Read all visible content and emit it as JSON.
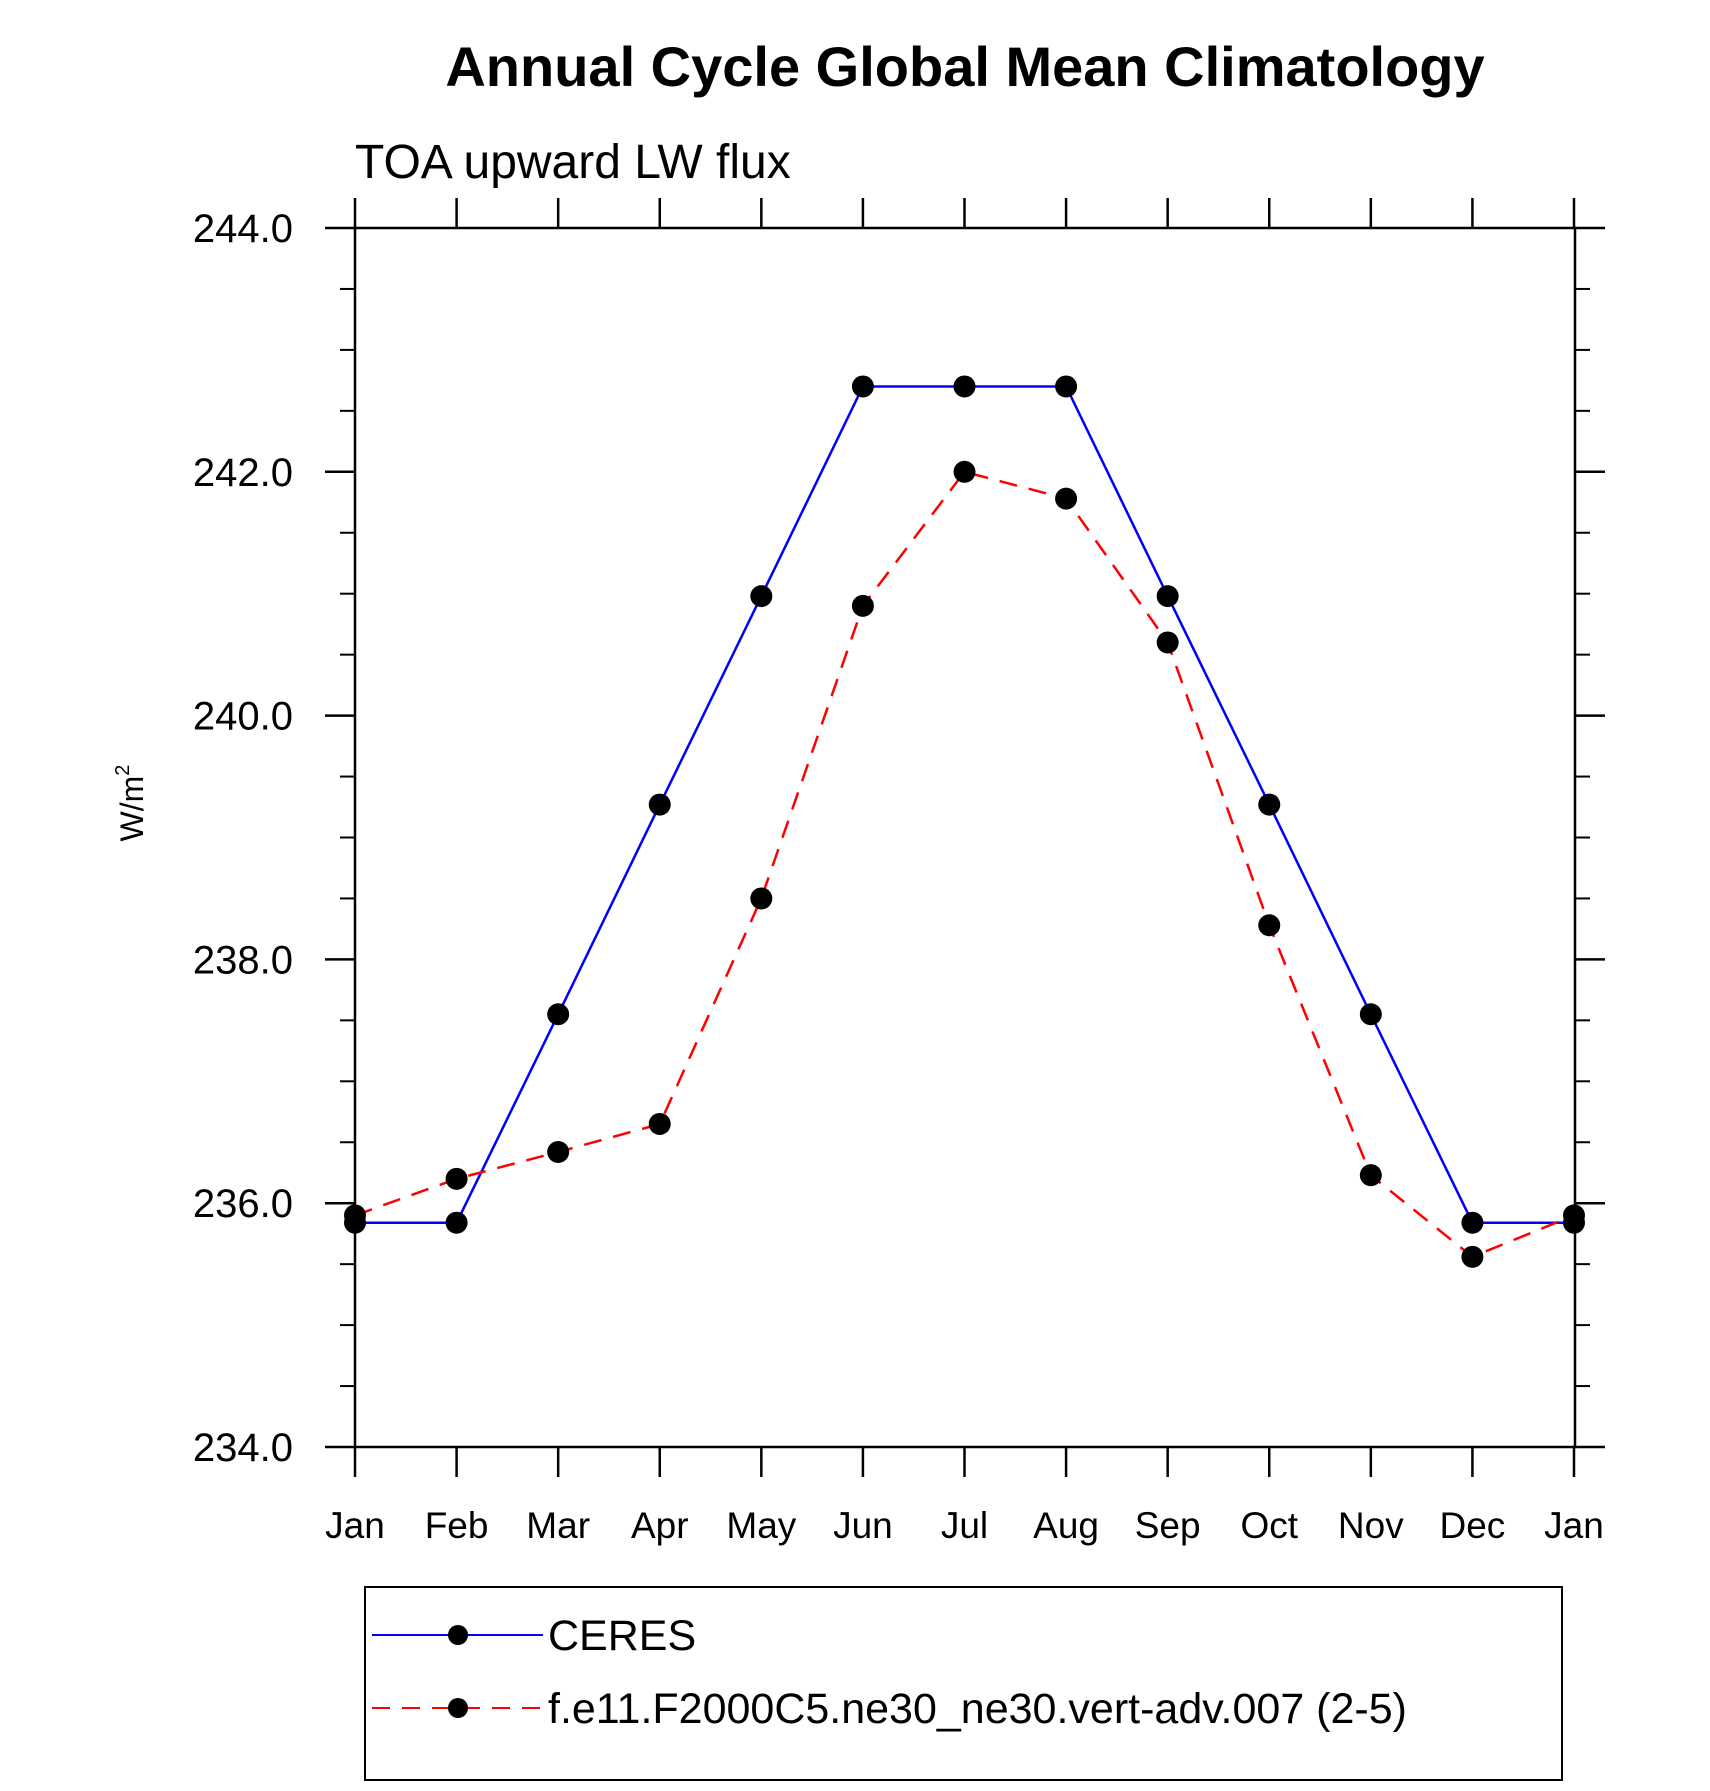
{
  "chart_data": {
    "type": "line",
    "title": "Annual Cycle Global Mean Climatology",
    "subtitle": "TOA upward LW flux",
    "ylabel": "W/m",
    "ylabel_sup": "2",
    "xlabel": "",
    "categories": [
      "Jan",
      "Feb",
      "Mar",
      "Apr",
      "May",
      "Jun",
      "Jul",
      "Aug",
      "Sep",
      "Oct",
      "Nov",
      "Dec",
      "Jan"
    ],
    "ylim": [
      234.0,
      244.0
    ],
    "yticks": [
      "234.0",
      "236.0",
      "238.0",
      "240.0",
      "242.0",
      "244.0"
    ],
    "grid": false,
    "legend_position": "bottom",
    "series": [
      {
        "name": "CERES",
        "color": "#0000ff",
        "line_style": "solid",
        "marker": "filled-circle",
        "values": [
          235.84,
          235.84,
          237.55,
          239.27,
          240.98,
          242.7,
          242.7,
          242.7,
          240.98,
          239.27,
          237.55,
          235.84,
          235.84
        ]
      },
      {
        "name": "f.e11.F2000C5.ne30_ne30.vert-adv.007 (2-5)",
        "color": "#ff0000",
        "line_style": "dashed",
        "marker": "filled-circle",
        "values": [
          235.9,
          236.2,
          236.42,
          236.65,
          238.5,
          240.9,
          242.0,
          241.78,
          240.6,
          238.28,
          236.23,
          235.56,
          235.9
        ]
      }
    ]
  }
}
